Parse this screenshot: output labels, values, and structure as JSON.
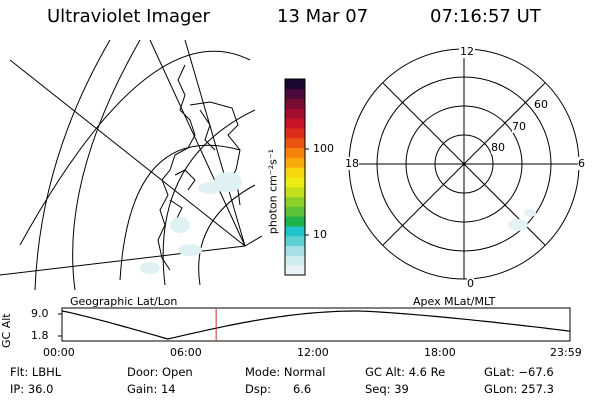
{
  "header": {
    "title": "Ultraviolet Imager",
    "date": "13 Mar 07",
    "time": "07:16:57 UT"
  },
  "left_panel": {
    "caption": "Geographic Lat/Lon"
  },
  "right_panel": {
    "caption": "Apex MLat/MLT",
    "mlt_labels": {
      "top": "12",
      "right": "6",
      "bottom": "0",
      "left": "18"
    },
    "lat_labels": [
      "60",
      "70",
      "80"
    ]
  },
  "colorbar": {
    "label": "photon cm⁻²s⁻¹",
    "ticks": [
      "100",
      "10"
    ],
    "colors": [
      "#e9f3f5",
      "#d1ecef",
      "#a8dfe4",
      "#5ccfd3",
      "#22c3c8",
      "#20b34a",
      "#5bc13a",
      "#8ad029",
      "#c3e01b",
      "#eded13",
      "#f6d60c",
      "#f7a90a",
      "#f5820d",
      "#ea5612",
      "#df2d1c",
      "#c81426",
      "#a00f2d",
      "#7a0c33",
      "#4c0a3a",
      "#1a0833"
    ]
  },
  "timeline": {
    "ylabel": "GC Alt",
    "y_ticks": [
      "9.0",
      "1.8"
    ],
    "x_ticks": [
      "00:00",
      "06:00",
      "12:00",
      "18:00",
      "23:59"
    ],
    "current_time": "07:16:57",
    "marker_color": "#c0392b"
  },
  "info": [
    [
      "Flt: LBHL",
      "Door: Open",
      "Mode: Normal",
      "GC Alt: 4.6 Re",
      "GLat: −67.6"
    ],
    [
      "IP: 36.0",
      "Gain: 14",
      "Dsp:      6.6",
      "Seq: 39",
      "GLon: 257.3"
    ]
  ]
}
